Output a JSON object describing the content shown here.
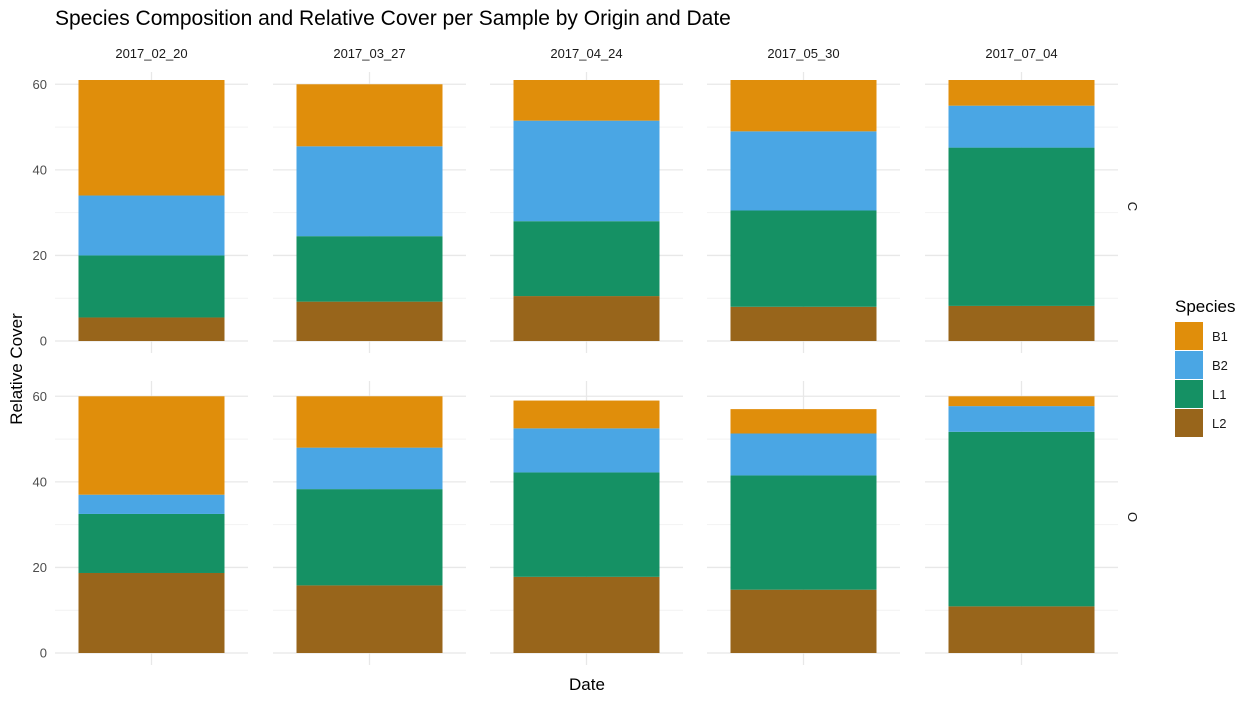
{
  "chart_data": {
    "type": "bar",
    "stacked": true,
    "title": "Species Composition and Relative Cover per Sample by Origin and Date",
    "xlabel": "Date",
    "ylabel": "Relative Cover",
    "ylim": [
      0,
      61
    ],
    "yticks": [
      0,
      20,
      40,
      60
    ],
    "grid": true,
    "legend": {
      "title": "Species",
      "position": "right",
      "entries": [
        "B1",
        "B2",
        "L1",
        "L2"
      ]
    },
    "colors": {
      "B1": "#E08E0B",
      "B2": "#4AA6E4",
      "L1": "#159164",
      "L2": "#98651B"
    },
    "stack_order_bottom_to_top": [
      "L2",
      "L1",
      "B2",
      "B1"
    ],
    "facet_cols": [
      "2017_02_20",
      "2017_03_27",
      "2017_04_24",
      "2017_05_30",
      "2017_07_04"
    ],
    "facet_rows": [
      "C",
      "O"
    ],
    "panels": [
      {
        "row": "C",
        "col": "2017_02_20",
        "values": {
          "L2": 5.5,
          "L1": 14.5,
          "B2": 14,
          "B1": 27
        }
      },
      {
        "row": "C",
        "col": "2017_03_27",
        "values": {
          "L2": 9.2,
          "L1": 15.3,
          "B2": 21,
          "B1": 14.5
        }
      },
      {
        "row": "C",
        "col": "2017_04_24",
        "values": {
          "L2": 10.5,
          "L1": 17.5,
          "B2": 23.5,
          "B1": 9.5
        }
      },
      {
        "row": "C",
        "col": "2017_05_30",
        "values": {
          "L2": 8,
          "L1": 22.5,
          "B2": 18.5,
          "B1": 12
        }
      },
      {
        "row": "C",
        "col": "2017_07_04",
        "values": {
          "L2": 8.2,
          "L1": 37,
          "B2": 9.8,
          "B1": 6
        }
      },
      {
        "row": "O",
        "col": "2017_02_20",
        "values": {
          "L2": 18.7,
          "L1": 13.8,
          "B2": 4.5,
          "B1": 23
        }
      },
      {
        "row": "O",
        "col": "2017_03_27",
        "values": {
          "L2": 15.8,
          "L1": 22.5,
          "B2": 9.7,
          "B1": 12
        }
      },
      {
        "row": "O",
        "col": "2017_04_24",
        "values": {
          "L2": 17.8,
          "L1": 24.4,
          "B2": 10.3,
          "B1": 6.5
        }
      },
      {
        "row": "O",
        "col": "2017_05_30",
        "values": {
          "L2": 14.8,
          "L1": 26.7,
          "B2": 9.8,
          "B1": 5.7
        }
      },
      {
        "row": "O",
        "col": "2017_07_04",
        "values": {
          "L2": 10.9,
          "L1": 40.8,
          "B2": 6,
          "B1": 2.3
        }
      }
    ]
  }
}
